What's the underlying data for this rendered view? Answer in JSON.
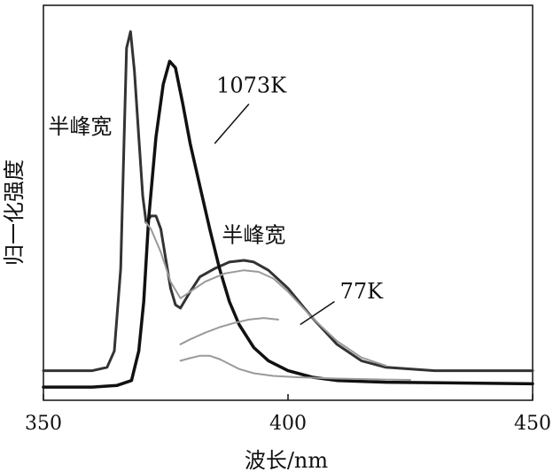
{
  "chart_data": {
    "type": "line",
    "title": "",
    "xlabel": "波长/nm",
    "ylabel": "归一化强度",
    "xlim": [
      350,
      450
    ],
    "ylim": [
      0,
      1.2
    ],
    "grid": false,
    "legend": "none",
    "x_ticks": [
      {
        "value": 350,
        "label": "350"
      },
      {
        "value": 400,
        "label": "400"
      },
      {
        "value": 450,
        "label": "450"
      }
    ],
    "series": [
      {
        "name": "77K",
        "color": "#333333",
        "width": 3,
        "points": [
          [
            350,
            0.09
          ],
          [
            360,
            0.09
          ],
          [
            363,
            0.1
          ],
          [
            364.5,
            0.15
          ],
          [
            365.8,
            0.4
          ],
          [
            366.5,
            0.8
          ],
          [
            367,
            1.07
          ],
          [
            367.8,
            1.12
          ],
          [
            368.6,
            1.0
          ],
          [
            369.5,
            0.8
          ],
          [
            370.3,
            0.62
          ],
          [
            371,
            0.54
          ],
          [
            372,
            0.56
          ],
          [
            373,
            0.56
          ],
          [
            374,
            0.52
          ],
          [
            375,
            0.43
          ],
          [
            376,
            0.34
          ],
          [
            377,
            0.29
          ],
          [
            378,
            0.28
          ],
          [
            380,
            0.33
          ],
          [
            382,
            0.375
          ],
          [
            385,
            0.4
          ],
          [
            388,
            0.42
          ],
          [
            391,
            0.425
          ],
          [
            393,
            0.42
          ],
          [
            396,
            0.395
          ],
          [
            400,
            0.34
          ],
          [
            405,
            0.25
          ],
          [
            410,
            0.17
          ],
          [
            415,
            0.12
          ],
          [
            420,
            0.1
          ],
          [
            430,
            0.09
          ],
          [
            450,
            0.09
          ]
        ]
      },
      {
        "name": "1073K",
        "color": "#111111",
        "width": 3.5,
        "points": [
          [
            350,
            0.04
          ],
          [
            360,
            0.04
          ],
          [
            365,
            0.045
          ],
          [
            368,
            0.06
          ],
          [
            369.5,
            0.15
          ],
          [
            370.5,
            0.3
          ],
          [
            371.5,
            0.55
          ],
          [
            373,
            0.8
          ],
          [
            374.5,
            0.96
          ],
          [
            375.8,
            1.03
          ],
          [
            377,
            1.01
          ],
          [
            378.5,
            0.9
          ],
          [
            380,
            0.78
          ],
          [
            382,
            0.65
          ],
          [
            384,
            0.52
          ],
          [
            386,
            0.4
          ],
          [
            388,
            0.3
          ],
          [
            390,
            0.23
          ],
          [
            393,
            0.16
          ],
          [
            396,
            0.12
          ],
          [
            400,
            0.09
          ],
          [
            405,
            0.07
          ],
          [
            410,
            0.06
          ],
          [
            420,
            0.055
          ],
          [
            450,
            0.05
          ]
        ]
      },
      {
        "name": "",
        "color": "#9a9a9a",
        "width": 2,
        "points": [
          [
            371,
            0.54
          ],
          [
            372,
            0.52
          ],
          [
            374,
            0.45
          ],
          [
            376,
            0.36
          ],
          [
            378,
            0.31
          ],
          [
            380,
            0.33
          ],
          [
            383,
            0.36
          ],
          [
            387,
            0.385
          ],
          [
            391,
            0.395
          ],
          [
            394,
            0.39
          ],
          [
            397,
            0.37
          ],
          [
            400,
            0.33
          ],
          [
            405,
            0.25
          ],
          [
            410,
            0.18
          ],
          [
            415,
            0.13
          ],
          [
            420,
            0.105
          ]
        ]
      },
      {
        "name": "",
        "color": "#9a9a9a",
        "width": 2,
        "points": [
          [
            378,
            0.17
          ],
          [
            380,
            0.185
          ],
          [
            383,
            0.205
          ],
          [
            386,
            0.222
          ],
          [
            389,
            0.235
          ],
          [
            392,
            0.245
          ],
          [
            395,
            0.25
          ],
          [
            398,
            0.245
          ]
        ]
      },
      {
        "name": "",
        "color": "#9a9a9a",
        "width": 2,
        "points": [
          [
            378,
            0.12
          ],
          [
            380,
            0.128
          ],
          [
            382,
            0.135
          ],
          [
            384,
            0.135
          ],
          [
            386,
            0.125
          ],
          [
            388,
            0.11
          ],
          [
            390,
            0.095
          ],
          [
            393,
            0.082
          ],
          [
            397,
            0.074
          ],
          [
            402,
            0.07
          ],
          [
            410,
            0.066
          ],
          [
            420,
            0.063
          ],
          [
            425,
            0.062
          ]
        ]
      }
    ],
    "annotations": [
      {
        "text": "半峰宽",
        "x": 357.5,
        "y": 0.81,
        "anchor": "middle"
      },
      {
        "text": "半峰宽",
        "x": 393,
        "y": 0.48,
        "anchor": "middle"
      },
      {
        "text": "1073K",
        "x": 392.5,
        "y": 0.935,
        "anchor": "middle",
        "leader_from": [
          392,
          0.9
        ],
        "leader_to": [
          385,
          0.78
        ]
      },
      {
        "text": "77K",
        "x": 415,
        "y": 0.31,
        "anchor": "middle",
        "leader_from": [
          409.5,
          0.3
        ],
        "leader_to": [
          402.5,
          0.23
        ]
      }
    ]
  }
}
